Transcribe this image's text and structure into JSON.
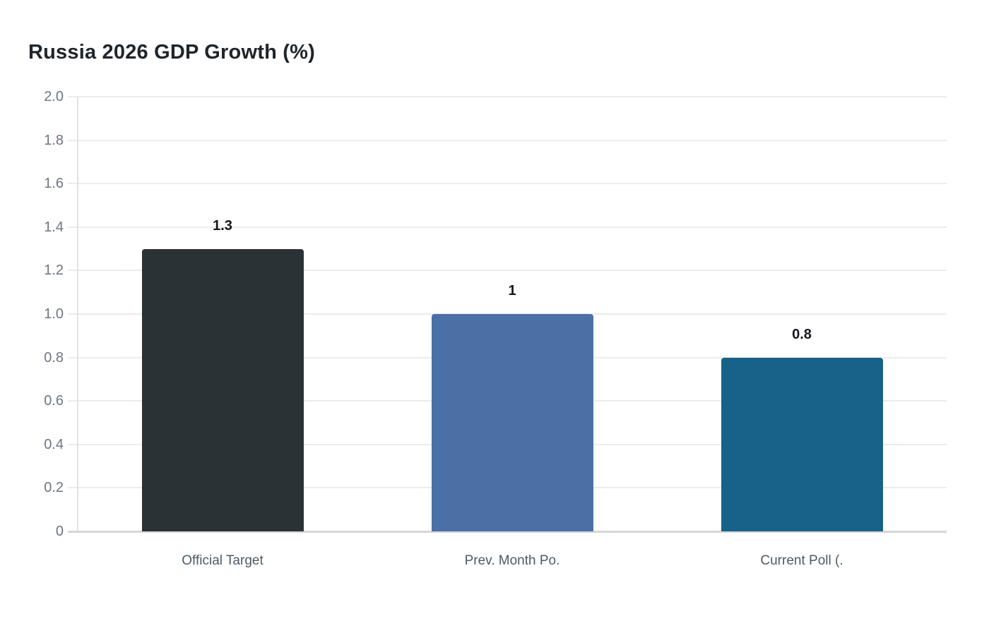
{
  "title": "Russia 2026 GDP Growth (%)",
  "chart_data": {
    "type": "bar",
    "title": "Russia 2026 GDP Growth (%)",
    "categories": [
      "Official Target",
      "Prev. Month Po.",
      "Current Poll (."
    ],
    "values": [
      1.3,
      1,
      0.8
    ],
    "value_labels": [
      "1.3",
      "1",
      "0.8"
    ],
    "bar_colors": [
      "#2b3236",
      "#4a70a6",
      "#176289"
    ],
    "xlabel": "",
    "ylabel": "",
    "ylim": [
      0,
      2.0
    ],
    "ytick_step": 0.2,
    "ytick_labels": [
      "0",
      "0.2",
      "0.4",
      "0.6",
      "0.8",
      "1.0",
      "1.2",
      "1.4",
      "1.6",
      "1.8",
      "2.0"
    ],
    "grid": true,
    "legend": false
  },
  "colors": {
    "background": "#ffffff",
    "title": "#20252a",
    "value_label": "#14181c",
    "tick_label": "#6d7681",
    "x_label": "#4f5963",
    "gridline": "#ececec",
    "axis_line": "#e2e2e2",
    "baseline": "#d6d6d6"
  }
}
